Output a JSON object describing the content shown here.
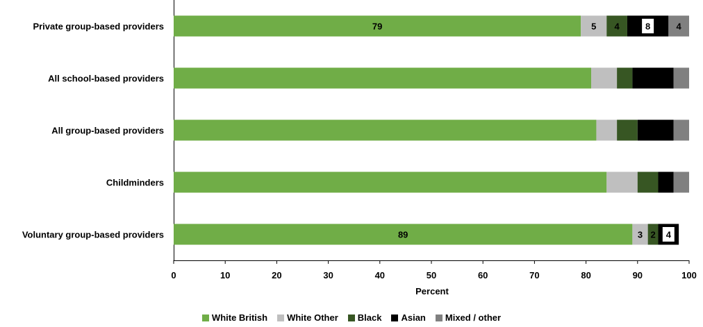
{
  "chart_data": {
    "type": "bar",
    "orientation": "horizontal",
    "stacked": true,
    "categories": [
      "Private group-based providers",
      "All school-based providers",
      "All group-based providers",
      "Childminders",
      "Voluntary group-based providers"
    ],
    "series": [
      {
        "name": "White British",
        "color": "#70ad47",
        "values": [
          79,
          81,
          82,
          84,
          89
        ]
      },
      {
        "name": "White Other",
        "color": "#bfbfbf",
        "values": [
          5,
          5,
          4,
          6,
          3
        ]
      },
      {
        "name": "Black",
        "color": "#375623",
        "values": [
          4,
          3,
          4,
          4,
          2
        ]
      },
      {
        "name": "Asian",
        "color": "#000000",
        "values": [
          8,
          8,
          7,
          3,
          4
        ]
      },
      {
        "name": "Mixed / other",
        "color": "#808080",
        "values": [
          4,
          3,
          3,
          3,
          0
        ]
      }
    ],
    "data_labels": [
      {
        "category": 0,
        "series": 0,
        "text": "79",
        "boxed": false
      },
      {
        "category": 0,
        "series": 1,
        "text": "5",
        "boxed": false
      },
      {
        "category": 0,
        "series": 2,
        "text": "4",
        "boxed": false
      },
      {
        "category": 0,
        "series": 3,
        "text": "8",
        "boxed": true
      },
      {
        "category": 0,
        "series": 4,
        "text": "4",
        "boxed": false
      },
      {
        "category": 4,
        "series": 0,
        "text": "89",
        "boxed": false
      },
      {
        "category": 4,
        "series": 1,
        "text": "3",
        "boxed": false
      },
      {
        "category": 4,
        "series": 2,
        "text": "2",
        "boxed": false
      },
      {
        "category": 4,
        "series": 3,
        "text": "4",
        "boxed": true
      }
    ],
    "xlabel": "Percent",
    "xlim": [
      0,
      100
    ],
    "xticks": [
      0,
      10,
      20,
      30,
      40,
      50,
      60,
      70,
      80,
      90,
      100
    ],
    "grid": false,
    "legend_position": "bottom"
  }
}
